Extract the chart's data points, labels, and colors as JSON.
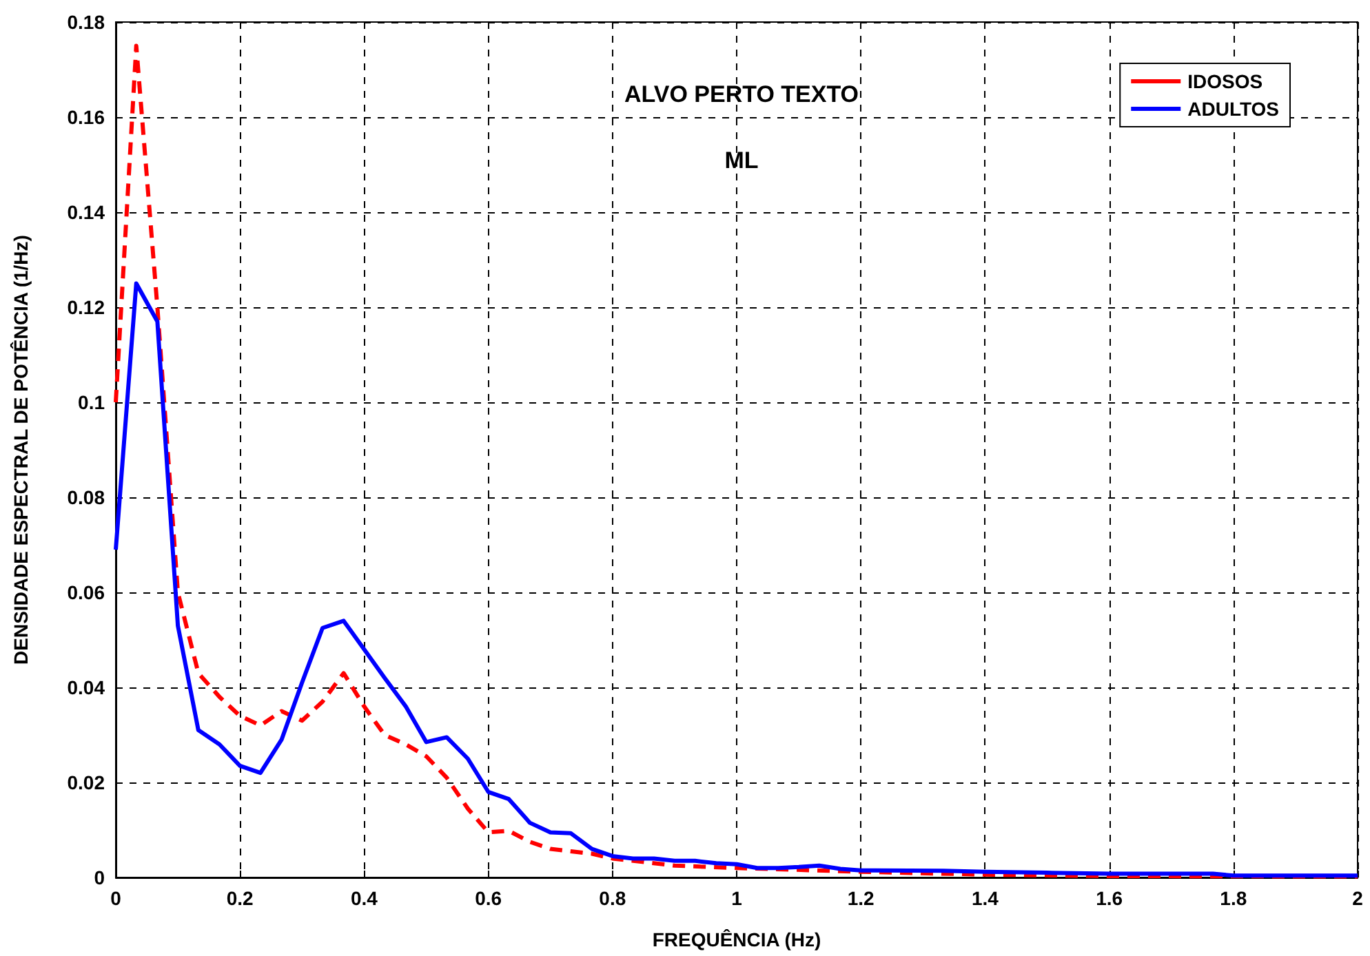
{
  "chart_data": {
    "type": "line",
    "title": "ALVO PERTO TEXTO",
    "subtitle": "ML",
    "xlabel": "FREQUÊNCIA (Hz)",
    "ylabel": "DENSIDADE ESPECTRAL DE POTÊNCIA (1/Hz)",
    "xlim": [
      0,
      2
    ],
    "xticks": [
      0,
      0.2,
      0.4,
      0.6,
      0.8,
      1,
      1.2,
      1.4,
      1.6,
      1.8,
      2
    ],
    "ylim": [
      0,
      0.18
    ],
    "yticks": [
      0,
      0.02,
      0.04,
      0.06,
      0.08,
      0.1,
      0.12,
      0.14,
      0.16,
      0.18
    ],
    "grid": true,
    "legend": "top right",
    "marker": "none",
    "series": [
      {
        "name": "IDOSOS",
        "color": "#ff0000",
        "line_style": "dashed",
        "x": [
          0,
          0.033,
          0.067,
          0.1,
          0.133,
          0.167,
          0.2,
          0.233,
          0.267,
          0.3,
          0.333,
          0.367,
          0.4,
          0.433,
          0.467,
          0.5,
          0.533,
          0.567,
          0.6,
          0.633,
          0.667,
          0.7,
          0.733,
          0.767,
          0.8,
          0.9,
          1,
          1.2,
          1.4,
          1.6,
          2
        ],
        "values": [
          0.1,
          0.175,
          0.12,
          0.06,
          0.043,
          0.038,
          0.034,
          0.032,
          0.035,
          0.033,
          0.037,
          0.043,
          0.036,
          0.03,
          0.028,
          0.0255,
          0.021,
          0.0145,
          0.0095,
          0.0098,
          0.0075,
          0.006,
          0.0055,
          0.005,
          0.004,
          0.0025,
          0.002,
          0.0012,
          0.0006,
          0.0003,
          0.0002
        ]
      },
      {
        "name": "ADULTOS",
        "color": "#0000ff",
        "line_style": "solid",
        "x": [
          0,
          0.033,
          0.067,
          0.1,
          0.133,
          0.167,
          0.2,
          0.233,
          0.267,
          0.3,
          0.333,
          0.367,
          0.4,
          0.433,
          0.467,
          0.5,
          0.533,
          0.567,
          0.6,
          0.633,
          0.667,
          0.7,
          0.733,
          0.767,
          0.8,
          0.833,
          0.867,
          0.9,
          0.933,
          0.967,
          1,
          1.033,
          1.067,
          1.1,
          1.133,
          1.167,
          1.2,
          1.333,
          1.4,
          1.5,
          1.6,
          1.767,
          1.8,
          2
        ],
        "values": [
          0.069,
          0.125,
          0.117,
          0.053,
          0.031,
          0.028,
          0.0235,
          0.022,
          0.029,
          0.041,
          0.0525,
          0.054,
          0.048,
          0.042,
          0.036,
          0.0285,
          0.0295,
          0.025,
          0.018,
          0.0165,
          0.0115,
          0.0095,
          0.0093,
          0.006,
          0.0045,
          0.004,
          0.004,
          0.0035,
          0.0035,
          0.003,
          0.0028,
          0.002,
          0.002,
          0.0022,
          0.0025,
          0.0018,
          0.0015,
          0.0014,
          0.0012,
          0.001,
          0.0008,
          0.0008,
          0.0004,
          0.0004
        ]
      }
    ]
  }
}
